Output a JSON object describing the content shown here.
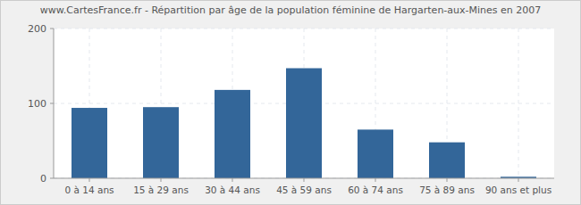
{
  "chart_data": {
    "type": "bar",
    "title": "www.CartesFrance.fr - Répartition par âge de la population féminine de Hargarten-aux-Mines en 2007",
    "categories": [
      "0 à 14 ans",
      "15 à 29 ans",
      "30 à 44 ans",
      "45 à 59 ans",
      "60 à 74 ans",
      "75 à 89 ans",
      "90 ans et plus"
    ],
    "values": [
      94,
      95,
      118,
      147,
      65,
      48,
      2
    ],
    "color": "#336699",
    "ylim": [
      0,
      200
    ],
    "yticks": [
      0,
      100,
      200
    ],
    "grid": true
  }
}
